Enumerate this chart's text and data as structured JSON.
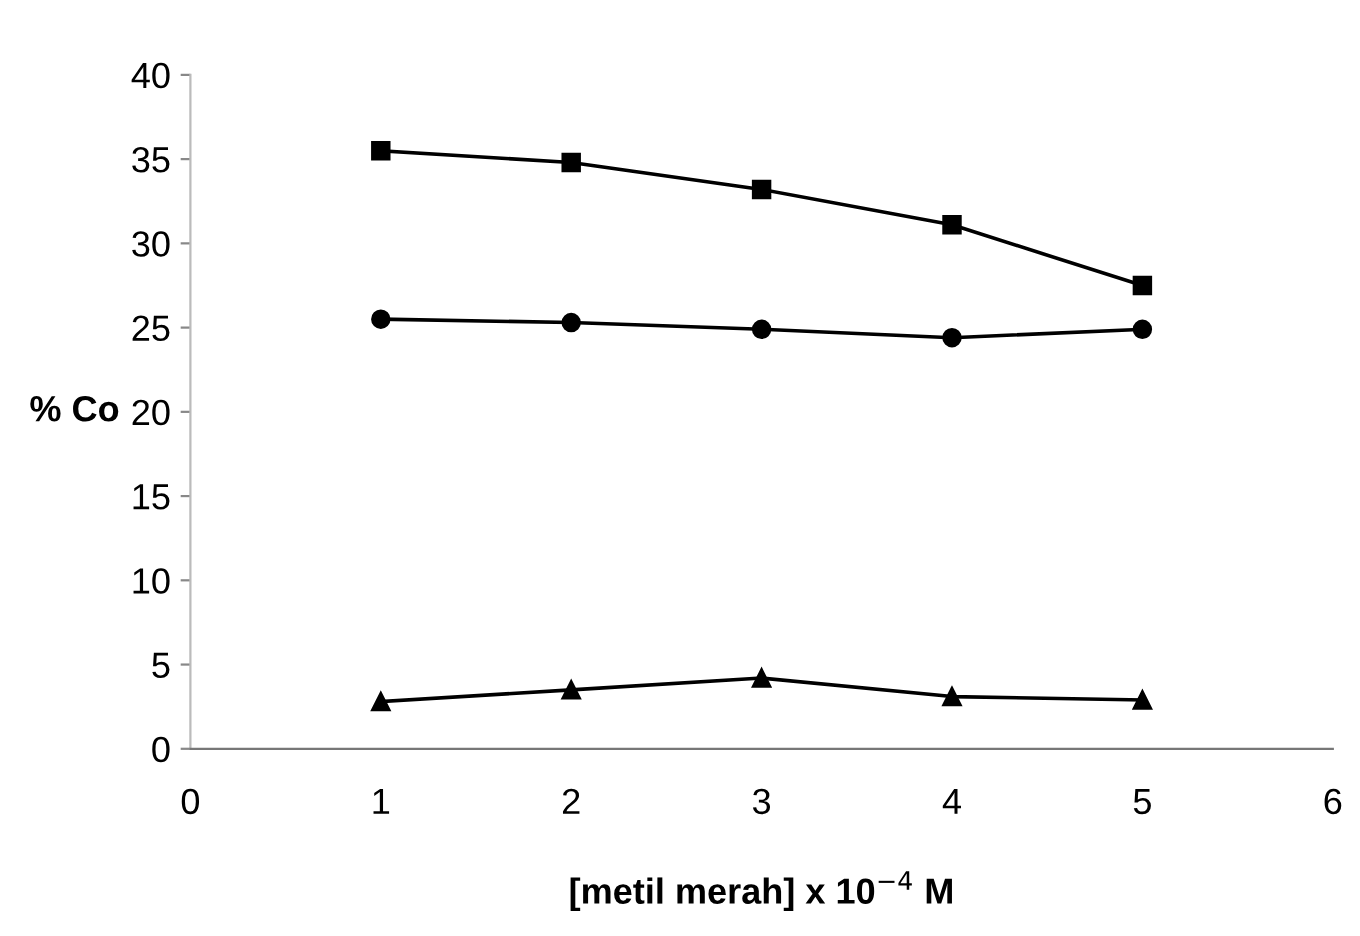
{
  "chart_data": {
    "type": "line",
    "xlabel": "[metil merah] x 10$^{−4}$ M",
    "ylabel": "% Co",
    "x": [
      1,
      2,
      3,
      4,
      5
    ],
    "series": [
      {
        "color": "#000000",
        "marker": "square",
        "values": [
          35.5,
          34.8,
          33.2,
          31.1,
          27.5
        ]
      },
      {
        "color": "#000000",
        "marker": "circle",
        "values": [
          25.5,
          25.3,
          24.9,
          24.4,
          24.9
        ]
      },
      {
        "color": "#000000",
        "marker": "triangle",
        "values": [
          2.8,
          3.5,
          4.2,
          3.1,
          2.9
        ]
      }
    ],
    "xlim": [
      0,
      6
    ],
    "xticks": [
      0,
      1,
      2,
      3,
      4,
      5,
      6
    ],
    "ylim": [
      0,
      40
    ],
    "yticks": [
      0,
      5,
      10,
      15,
      20,
      25,
      30,
      35,
      40
    ],
    "grid": false,
    "legend": false
  }
}
